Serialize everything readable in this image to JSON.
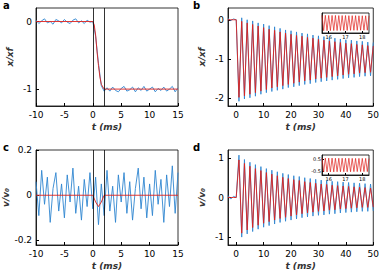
{
  "chart_data": [
    {
      "type": "line",
      "label": "a",
      "x_label": "t (ms)",
      "y_label": "x/xf",
      "xlim": [
        -10,
        15
      ],
      "xticks": [
        -10,
        -5,
        0,
        5,
        10,
        15
      ],
      "ylim": [
        -1.25,
        0.2
      ],
      "yticks": [
        -1,
        0
      ],
      "vlines": [
        0,
        2
      ],
      "series": [
        {
          "color": "#2f86d0",
          "x": [
            -10,
            -9.5,
            -9,
            -8.5,
            -8,
            -7.5,
            -7,
            -6.5,
            -6,
            -5.5,
            -5,
            -4.5,
            -4,
            -3.5,
            -3,
            -2.5,
            -2,
            -1.5,
            -1,
            -0.5,
            0,
            0.5,
            1,
            1.5,
            2,
            2.5,
            3,
            3.5,
            4,
            4.5,
            5,
            5.5,
            6,
            6.5,
            7,
            7.5,
            8,
            8.5,
            9,
            9.5,
            10,
            10.5,
            11,
            11.5,
            12,
            12.5,
            13,
            13.5,
            14,
            14.5,
            15
          ],
          "values": [
            0.02,
            -0.03,
            0.01,
            0.04,
            -0.02,
            0.0,
            -0.04,
            0.03,
            0.01,
            -0.02,
            0.03,
            -0.01,
            -0.03,
            0.02,
            0.04,
            -0.02,
            0.01,
            -0.03,
            0.02,
            -0.01,
            0.0,
            -0.22,
            -0.62,
            -0.95,
            -1.03,
            -0.98,
            -1.03,
            -0.97,
            -1.02,
            -1.04,
            -0.99,
            -0.96,
            -1.03,
            -1.01,
            -0.97,
            -1.04,
            -0.98,
            -1.02,
            -0.96,
            -1.03,
            -1.0,
            -0.97,
            -1.04,
            -0.99,
            -1.02,
            -0.97,
            -1.03,
            -1.0,
            -0.96,
            -1.04,
            -0.98
          ]
        },
        {
          "color": "#e0201b",
          "x": [
            -10,
            0,
            0.25,
            0.5,
            0.75,
            1,
            1.25,
            1.5,
            2,
            15
          ],
          "values": [
            0,
            0,
            -0.05,
            -0.2,
            -0.45,
            -0.65,
            -0.82,
            -0.93,
            -1,
            -1
          ]
        }
      ]
    },
    {
      "type": "line",
      "label": "b",
      "x_label": "t (ms)",
      "y_label": "x/xf",
      "xlim": [
        -3,
        50
      ],
      "xticks": [
        0,
        10,
        20,
        30,
        40,
        50
      ],
      "ylim": [
        -2.2,
        0.3
      ],
      "yticks": [
        -2,
        -1,
        0
      ],
      "series": [
        {
          "color": "#2f86d0",
          "x": [
            -3,
            -2,
            -1,
            0,
            1,
            2,
            3,
            4,
            5,
            6,
            7,
            8,
            9,
            10,
            11,
            12,
            13,
            14,
            15,
            16,
            17,
            18,
            19,
            20,
            21,
            22,
            23,
            24,
            25,
            26,
            27,
            28,
            29,
            30,
            31,
            32,
            33,
            34,
            35,
            36,
            37,
            38,
            39,
            40,
            41,
            42,
            43,
            44,
            45,
            46,
            47,
            48,
            49,
            50
          ],
          "values": [
            0.03,
            -0.02,
            0.02,
            0,
            -2.08,
            0.05,
            -2.02,
            0.0,
            -1.99,
            -0.03,
            -1.95,
            -0.08,
            -1.9,
            -0.11,
            -1.86,
            -0.15,
            -1.83,
            -0.18,
            -1.8,
            -0.22,
            -1.77,
            -0.26,
            -1.73,
            -0.28,
            -1.71,
            -0.31,
            -1.68,
            -0.34,
            -1.65,
            -0.36,
            -1.63,
            -0.39,
            -1.6,
            -0.41,
            -1.58,
            -0.43,
            -1.56,
            -0.45,
            -1.54,
            -0.47,
            -1.52,
            -0.49,
            -1.5,
            -0.51,
            -1.48,
            -0.52,
            -1.47,
            -0.54,
            -1.45,
            -0.55,
            -1.44,
            -0.57,
            -1.43,
            -0.58
          ]
        },
        {
          "color": "#e0201b",
          "x": [
            -3,
            -2,
            -1,
            0,
            1,
            2,
            3,
            4,
            5,
            6,
            7,
            8,
            9,
            10,
            11,
            12,
            13,
            14,
            15,
            16,
            17,
            18,
            19,
            20,
            21,
            22,
            23,
            24,
            25,
            26,
            27,
            28,
            29,
            30,
            31,
            32,
            33,
            34,
            35,
            36,
            37,
            38,
            39,
            40,
            41,
            42,
            43,
            44,
            45,
            46,
            47,
            48,
            49,
            50
          ],
          "values": [
            0,
            0,
            0,
            0,
            -1.98,
            -0.04,
            -1.94,
            -0.08,
            -1.9,
            -0.12,
            -1.86,
            -0.16,
            -1.82,
            -0.2,
            -1.78,
            -0.24,
            -1.74,
            -0.27,
            -1.71,
            -0.31,
            -1.68,
            -0.34,
            -1.65,
            -0.37,
            -1.62,
            -0.4,
            -1.59,
            -0.42,
            -1.56,
            -0.45,
            -1.54,
            -0.47,
            -1.51,
            -0.5,
            -1.49,
            -0.52,
            -1.47,
            -0.54,
            -1.45,
            -0.56,
            -1.43,
            -0.58,
            -1.41,
            -0.6,
            -1.39,
            -0.61,
            -1.38,
            -0.63,
            -1.36,
            -0.64,
            -1.35,
            -0.66,
            -1.34,
            -0.67
          ]
        }
      ],
      "inset": {
        "type": "line",
        "xlim": [
          15.6,
          18.4
        ],
        "xticks": [
          16,
          17,
          18
        ],
        "ylim": [
          -1.9,
          -0.1
        ],
        "tick_labels": "x",
        "series": [
          {
            "color": "#e0201b",
            "x": [
              15.6,
              15.7,
              15.8,
              15.9,
              16,
              16.1,
              16.2,
              16.3,
              16.4,
              16.5,
              16.6,
              16.7,
              16.8,
              16.9,
              17,
              17.1,
              17.2,
              17.3,
              17.4,
              17.5,
              17.6,
              17.7,
              17.8,
              17.9,
              18,
              18.1,
              18.2,
              18.3,
              18.4
            ],
            "values": [
              -0.31,
              -1.69,
              -0.31,
              -1.69,
              -0.32,
              -1.68,
              -0.32,
              -1.68,
              -0.32,
              -1.68,
              -0.33,
              -1.67,
              -0.33,
              -1.67,
              -0.33,
              -1.67,
              -0.34,
              -1.66,
              -0.34,
              -1.66,
              -0.34,
              -1.66,
              -0.35,
              -1.65,
              -0.35,
              -1.65,
              -0.35,
              -1.65,
              -0.36
            ]
          }
        ]
      }
    },
    {
      "type": "line",
      "label": "c",
      "x_label": "t (ms)",
      "y_label": "v/v₀",
      "xlim": [
        -10,
        15
      ],
      "xticks": [
        -10,
        -5,
        0,
        5,
        10,
        15
      ],
      "ylim": [
        -0.22,
        0.2
      ],
      "yticks": [
        -0.2,
        0,
        0.2
      ],
      "vlines": [
        0,
        2
      ],
      "series": [
        {
          "color": "#2f86d0",
          "x": [
            -10,
            -9.5,
            -9,
            -8.5,
            -8,
            -7.5,
            -7,
            -6.5,
            -6,
            -5.5,
            -5,
            -4.5,
            -4,
            -3.5,
            -3,
            -2.5,
            -2,
            -1.5,
            -1,
            -0.5,
            0,
            0.5,
            1,
            1.5,
            2,
            2.5,
            3,
            3.5,
            4,
            4.5,
            5,
            5.5,
            6,
            6.5,
            7,
            7.5,
            8,
            8.5,
            9,
            9.5,
            10,
            10.5,
            11,
            11.5,
            12,
            12.5,
            13,
            13.5,
            14,
            14.5,
            15
          ],
          "values": [
            0.06,
            -0.09,
            0.11,
            -0.04,
            0.08,
            -0.12,
            0.03,
            0.1,
            -0.07,
            0.05,
            -0.1,
            0.09,
            -0.03,
            0.12,
            -0.08,
            0.04,
            -0.11,
            0.07,
            -0.05,
            0.1,
            -0.06,
            0.08,
            -0.13,
            0.05,
            -0.09,
            0.11,
            -0.07,
            0.04,
            -0.12,
            0.09,
            -0.03,
            0.1,
            -0.08,
            0.06,
            -0.11,
            0.03,
            0.12,
            -0.06,
            0.08,
            -0.1,
            0.05,
            -0.09,
            0.11,
            -0.04,
            0.07,
            -0.12,
            0.09,
            -0.05,
            0.13,
            -0.08,
            0.1
          ]
        },
        {
          "color": "#e0201b",
          "x": [
            -10,
            0,
            0.5,
            1,
            1.5,
            2,
            15
          ],
          "values": [
            0,
            0,
            -0.03,
            -0.05,
            -0.03,
            0,
            0
          ]
        }
      ]
    },
    {
      "type": "line",
      "label": "d",
      "x_label": "t (ms)",
      "y_label": "v/v₀",
      "xlim": [
        -3,
        50
      ],
      "xticks": [
        0,
        10,
        20,
        30,
        40,
        50
      ],
      "ylim": [
        -1.2,
        1.2
      ],
      "yticks": [
        -1,
        0,
        1
      ],
      "series": [
        {
          "color": "#2f86d0",
          "x": [
            -3,
            -2,
            -1,
            0,
            1,
            2,
            3,
            4,
            5,
            6,
            7,
            8,
            9,
            10,
            11,
            12,
            13,
            14,
            15,
            16,
            17,
            18,
            19,
            20,
            21,
            22,
            23,
            24,
            25,
            26,
            27,
            28,
            29,
            30,
            31,
            32,
            33,
            34,
            35,
            36,
            37,
            38,
            39,
            40,
            41,
            42,
            43,
            44,
            45,
            46,
            47,
            48,
            49,
            50
          ],
          "values": [
            0.05,
            -0.04,
            0.03,
            0,
            1.07,
            -1.0,
            0.96,
            -0.92,
            0.89,
            -0.86,
            0.83,
            -0.8,
            0.78,
            -0.75,
            0.73,
            -0.71,
            0.69,
            -0.67,
            0.65,
            -0.63,
            0.61,
            -0.6,
            0.58,
            -0.57,
            0.55,
            -0.54,
            0.53,
            -0.51,
            0.5,
            -0.49,
            0.48,
            -0.47,
            0.46,
            -0.45,
            0.44,
            -0.44,
            0.43,
            -0.42,
            0.41,
            -0.41,
            0.4,
            -0.39,
            0.39,
            -0.38,
            0.38,
            -0.37,
            0.37,
            -0.36,
            0.36,
            -0.35,
            0.35,
            -0.35,
            0.34,
            -0.34
          ]
        },
        {
          "color": "#e0201b",
          "x": [
            -3,
            -2,
            -1,
            0,
            1,
            2,
            3,
            4,
            5,
            6,
            7,
            8,
            9,
            10,
            11,
            12,
            13,
            14,
            15,
            16,
            17,
            18,
            19,
            20,
            21,
            22,
            23,
            24,
            25,
            26,
            27,
            28,
            29,
            30,
            31,
            32,
            33,
            34,
            35,
            36,
            37,
            38,
            39,
            40,
            41,
            42,
            43,
            44,
            45,
            46,
            47,
            48,
            49,
            50
          ],
          "values": [
            0,
            0,
            0,
            0,
            0.95,
            -0.9,
            0.86,
            -0.82,
            0.79,
            -0.76,
            0.73,
            -0.7,
            0.68,
            -0.65,
            0.63,
            -0.61,
            0.59,
            -0.57,
            0.55,
            -0.53,
            0.51,
            -0.5,
            0.48,
            -0.47,
            0.45,
            -0.44,
            0.43,
            -0.41,
            0.4,
            -0.39,
            0.38,
            -0.37,
            0.36,
            -0.35,
            0.34,
            -0.34,
            0.33,
            -0.32,
            0.31,
            -0.31,
            0.3,
            -0.29,
            0.29,
            -0.28,
            0.28,
            -0.27,
            0.27,
            -0.26,
            0.26,
            -0.25,
            0.25,
            -0.25,
            0.24,
            -0.24
          ]
        }
      ],
      "inset": {
        "type": "line",
        "xlim": [
          15.6,
          18.4
        ],
        "xticks": [
          16,
          17,
          18
        ],
        "ylim": [
          -0.8,
          0.8
        ],
        "yticks": [
          -0.5,
          0.5
        ],
        "series": [
          {
            "color": "#e0201b",
            "x": [
              15.6,
              15.7,
              15.8,
              15.9,
              16,
              16.1,
              16.2,
              16.3,
              16.4,
              16.5,
              16.6,
              16.7,
              16.8,
              16.9,
              17,
              17.1,
              17.2,
              17.3,
              17.4,
              17.5,
              17.6,
              17.7,
              17.8,
              17.9,
              18,
              18.1,
              18.2,
              18.3,
              18.4
            ],
            "values": [
              0.55,
              -0.55,
              0.55,
              -0.55,
              0.55,
              -0.55,
              0.55,
              -0.55,
              0.54,
              -0.54,
              0.54,
              -0.54,
              0.54,
              -0.54,
              0.54,
              -0.54,
              0.54,
              -0.54,
              0.53,
              -0.53,
              0.53,
              -0.53,
              0.53,
              -0.53,
              0.53,
              -0.53,
              0.53,
              -0.53,
              0.52
            ]
          }
        ]
      }
    }
  ]
}
